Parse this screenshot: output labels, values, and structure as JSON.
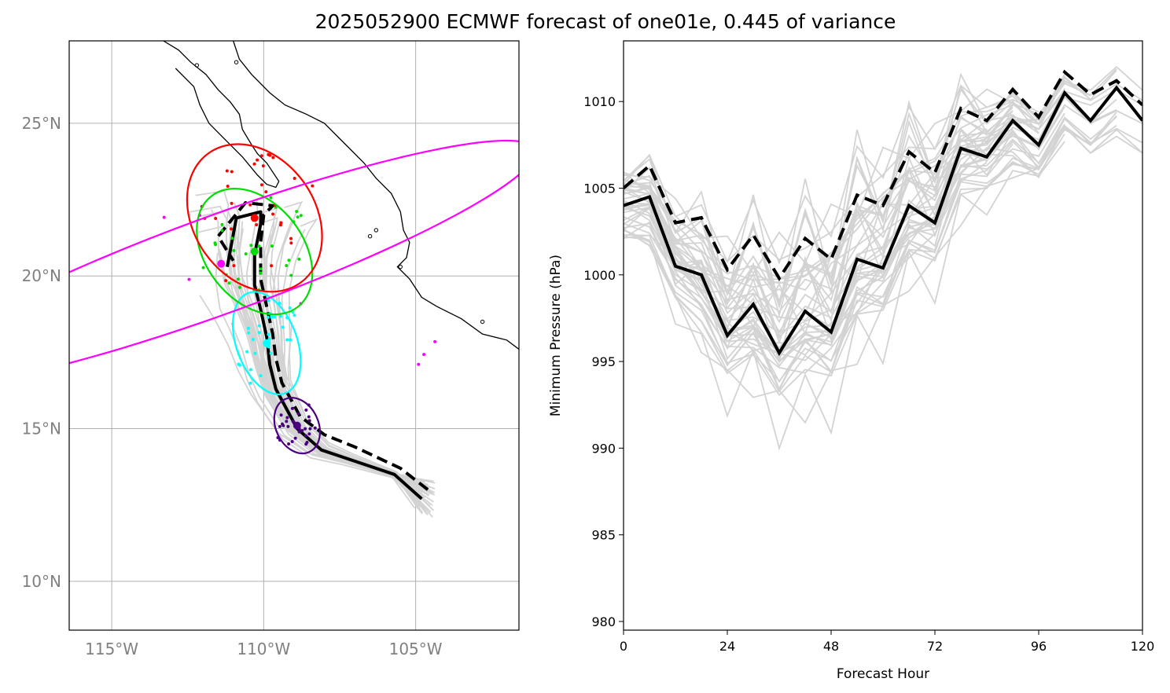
{
  "title": "2025052900 ECMWF forecast of one01e, 0.445 of variance",
  "colors": {
    "ensemble": "#d3d3d3",
    "grid": "#b0b0b0",
    "map_ticks": "#808080",
    "mean": "#000000",
    "ellipse_24h": "#4b0082",
    "ellipse_48h": "#00ffff",
    "ellipse_72h": "#00dd00",
    "ellipse_96h": "#ff0000",
    "ellipse_120h": "#ff00ff"
  },
  "chart_data": [
    {
      "type": "map-track",
      "lon_labels": [
        "115°W",
        "110°W",
        "105°W"
      ],
      "lat_labels": [
        "10°N",
        "15°N",
        "20°N",
        "25°N"
      ],
      "lon_range": [
        -116.4,
        -101.6
      ],
      "lat_range": [
        8.4,
        27.7
      ],
      "grid": true,
      "mean_track_solid": [
        [
          -104.8,
          12.7
        ],
        [
          -105.7,
          13.5
        ],
        [
          -107.2,
          14.0
        ],
        [
          -108.1,
          14.3
        ],
        [
          -108.9,
          15.0
        ],
        [
          -109.6,
          16.3
        ],
        [
          -109.8,
          17.1
        ],
        [
          -109.9,
          18.0
        ],
        [
          -110.1,
          18.9
        ],
        [
          -110.3,
          19.7
        ],
        [
          -110.3,
          20.7
        ],
        [
          -110.1,
          21.7
        ],
        [
          -110.1,
          22.1
        ],
        [
          -110.9,
          21.9
        ],
        [
          -111.2,
          20.3
        ]
      ],
      "mean_track_dashed": [
        [
          -104.6,
          13.0
        ],
        [
          -105.5,
          13.7
        ],
        [
          -107.0,
          14.4
        ],
        [
          -108.0,
          14.8
        ],
        [
          -108.8,
          15.4
        ],
        [
          -109.4,
          16.5
        ],
        [
          -109.6,
          17.3
        ],
        [
          -109.7,
          18.1
        ],
        [
          -109.9,
          19.0
        ],
        [
          -110.1,
          19.9
        ],
        [
          -110.1,
          21.1
        ],
        [
          -110.0,
          22.0
        ],
        [
          -109.7,
          22.3
        ],
        [
          -110.6,
          22.4
        ],
        [
          -111.5,
          21.3
        ],
        [
          -111.0,
          20.5
        ]
      ],
      "ellipses": [
        {
          "hour": "24",
          "center": [
            -108.9,
            15.1
          ],
          "width": 1.4,
          "height": 1.9,
          "angle": -25,
          "color_key": "ellipse_24h"
        },
        {
          "hour": "48",
          "center": [
            -109.9,
            17.8
          ],
          "width": 2.0,
          "height": 3.5,
          "angle": -20,
          "color_key": "ellipse_48h"
        },
        {
          "hour": "72",
          "center": [
            -110.3,
            20.8
          ],
          "width": 3.2,
          "height": 4.6,
          "angle": -38,
          "color_key": "ellipse_72h"
        },
        {
          "hour": "96",
          "center": [
            -110.3,
            21.9
          ],
          "width": 4.0,
          "height": 5.2,
          "angle": -35,
          "color_key": "ellipse_96h"
        },
        {
          "hour": "120",
          "center": [
            -111.4,
            20.4
          ],
          "width": 22.0,
          "height": 3.2,
          "angle": -20,
          "color_key": "ellipse_120h"
        }
      ],
      "ensemble_member_count": 50,
      "coastline": [
        [
          [
            -113.3,
            27.7
          ],
          [
            -112.8,
            27.4
          ],
          [
            -112.4,
            27.0
          ],
          [
            -111.9,
            26.6
          ],
          [
            -111.5,
            26.1
          ],
          [
            -111.1,
            25.7
          ],
          [
            -110.8,
            25.3
          ],
          [
            -110.7,
            24.8
          ],
          [
            -110.4,
            24.3
          ],
          [
            -110.2,
            24.0
          ],
          [
            -109.9,
            23.7
          ],
          [
            -109.5,
            23.1
          ],
          [
            -109.6,
            22.9
          ],
          [
            -109.9,
            23.0
          ],
          [
            -110.2,
            23.3
          ],
          [
            -110.7,
            23.9
          ],
          [
            -111.3,
            24.5
          ],
          [
            -111.8,
            25.0
          ],
          [
            -112.1,
            25.6
          ],
          [
            -112.3,
            26.2
          ],
          [
            -112.9,
            26.8
          ]
        ],
        [
          [
            -111.0,
            27.7
          ],
          [
            -110.8,
            27.1
          ],
          [
            -110.4,
            26.6
          ],
          [
            -109.8,
            26.0
          ],
          [
            -109.3,
            25.6
          ],
          [
            -108.6,
            25.3
          ],
          [
            -108.0,
            25.0
          ],
          [
            -107.6,
            24.6
          ],
          [
            -107.2,
            24.2
          ],
          [
            -106.7,
            23.7
          ],
          [
            -106.3,
            23.2
          ],
          [
            -105.8,
            22.7
          ],
          [
            -105.5,
            22.1
          ],
          [
            -105.4,
            21.5
          ],
          [
            -105.2,
            21.1
          ],
          [
            -105.3,
            20.6
          ],
          [
            -105.6,
            20.3
          ],
          [
            -105.2,
            19.9
          ],
          [
            -104.8,
            19.3
          ],
          [
            -104.3,
            19.0
          ],
          [
            -103.5,
            18.6
          ],
          [
            -102.8,
            18.1
          ],
          [
            -102.0,
            17.9
          ],
          [
            -101.6,
            17.6
          ]
        ]
      ]
    },
    {
      "type": "line",
      "xlabel": "Forecast Hour",
      "ylabel": "Minimum Pressure (hPa)",
      "xlim": [
        0,
        120
      ],
      "ylim": [
        979.5,
        1013.5
      ],
      "xticks": [
        "0",
        "24",
        "48",
        "72",
        "96",
        "120"
      ],
      "yticks": [
        "980",
        "985",
        "990",
        "995",
        "1000",
        "1005",
        "1010"
      ],
      "x": [
        0,
        6,
        12,
        18,
        24,
        30,
        36,
        42,
        48,
        54,
        60,
        66,
        72,
        78,
        84,
        90,
        96,
        102,
        108,
        114,
        120
      ],
      "series": [
        {
          "style": "solid",
          "values": [
            1004.0,
            1004.5,
            1000.5,
            1000.0,
            996.5,
            998.3,
            995.5,
            997.9,
            996.7,
            1000.9,
            1000.4,
            1004.0,
            1003.0,
            1007.3,
            1006.8,
            1008.9,
            1007.5,
            1010.5,
            1008.9,
            1010.8,
            1008.9
          ]
        },
        {
          "style": "dashed",
          "values": [
            1005.0,
            1006.3,
            1003.0,
            1003.3,
            1000.3,
            1002.3,
            999.8,
            1002.1,
            1000.9,
            1004.6,
            1004.0,
            1007.1,
            1005.9,
            1009.6,
            1008.9,
            1010.7,
            1009.1,
            1011.7,
            1010.4,
            1011.2,
            1009.8
          ]
        }
      ]
    }
  ]
}
